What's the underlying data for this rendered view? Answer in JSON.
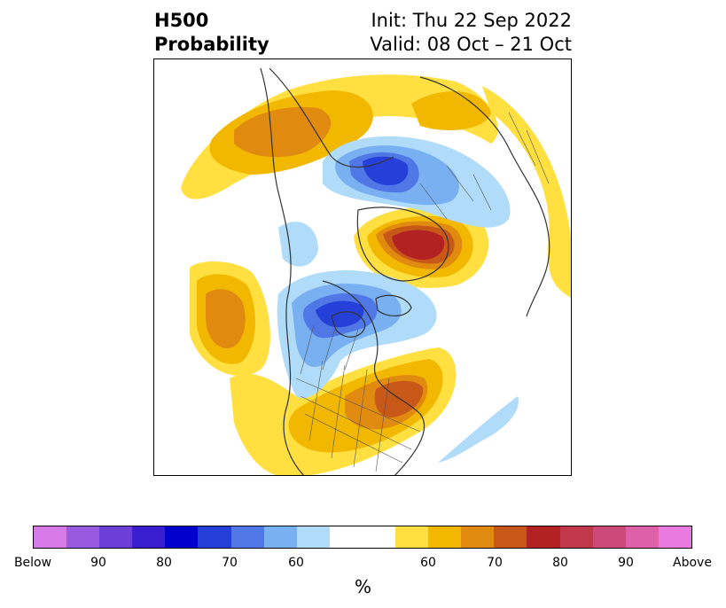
{
  "header": {
    "variable": "H500",
    "product": "Probability",
    "init": "Init: Thu 22 Sep 2022",
    "valid": "Valid: 08 Oct – 21 Oct"
  },
  "colorbar": {
    "colors": [
      "#d67ae8",
      "#9a5ae0",
      "#6b3fd8",
      "#3a1fd0",
      "#0000cc",
      "#2540d8",
      "#4f78e6",
      "#78b0f2",
      "#b0dcfa",
      "#ffffff",
      "#ffffff",
      "#ffe040",
      "#f2b800",
      "#e08a10",
      "#c85818",
      "#b22222",
      "#c0384a",
      "#cc4a7a",
      "#dd60a8",
      "#e87ae0"
    ],
    "tick_labels": [
      "Below",
      "90",
      "80",
      "70",
      "60",
      "60",
      "70",
      "80",
      "90",
      "Above"
    ],
    "unit": "%"
  },
  "map_layers": {
    "warm": [
      "#ffe040",
      "#f2b800",
      "#e08a10",
      "#c85818",
      "#b22222"
    ],
    "cool": [
      "#b0dcfa",
      "#78b0f2",
      "#4f78e6",
      "#2540d8"
    ],
    "coast": "#333333"
  }
}
